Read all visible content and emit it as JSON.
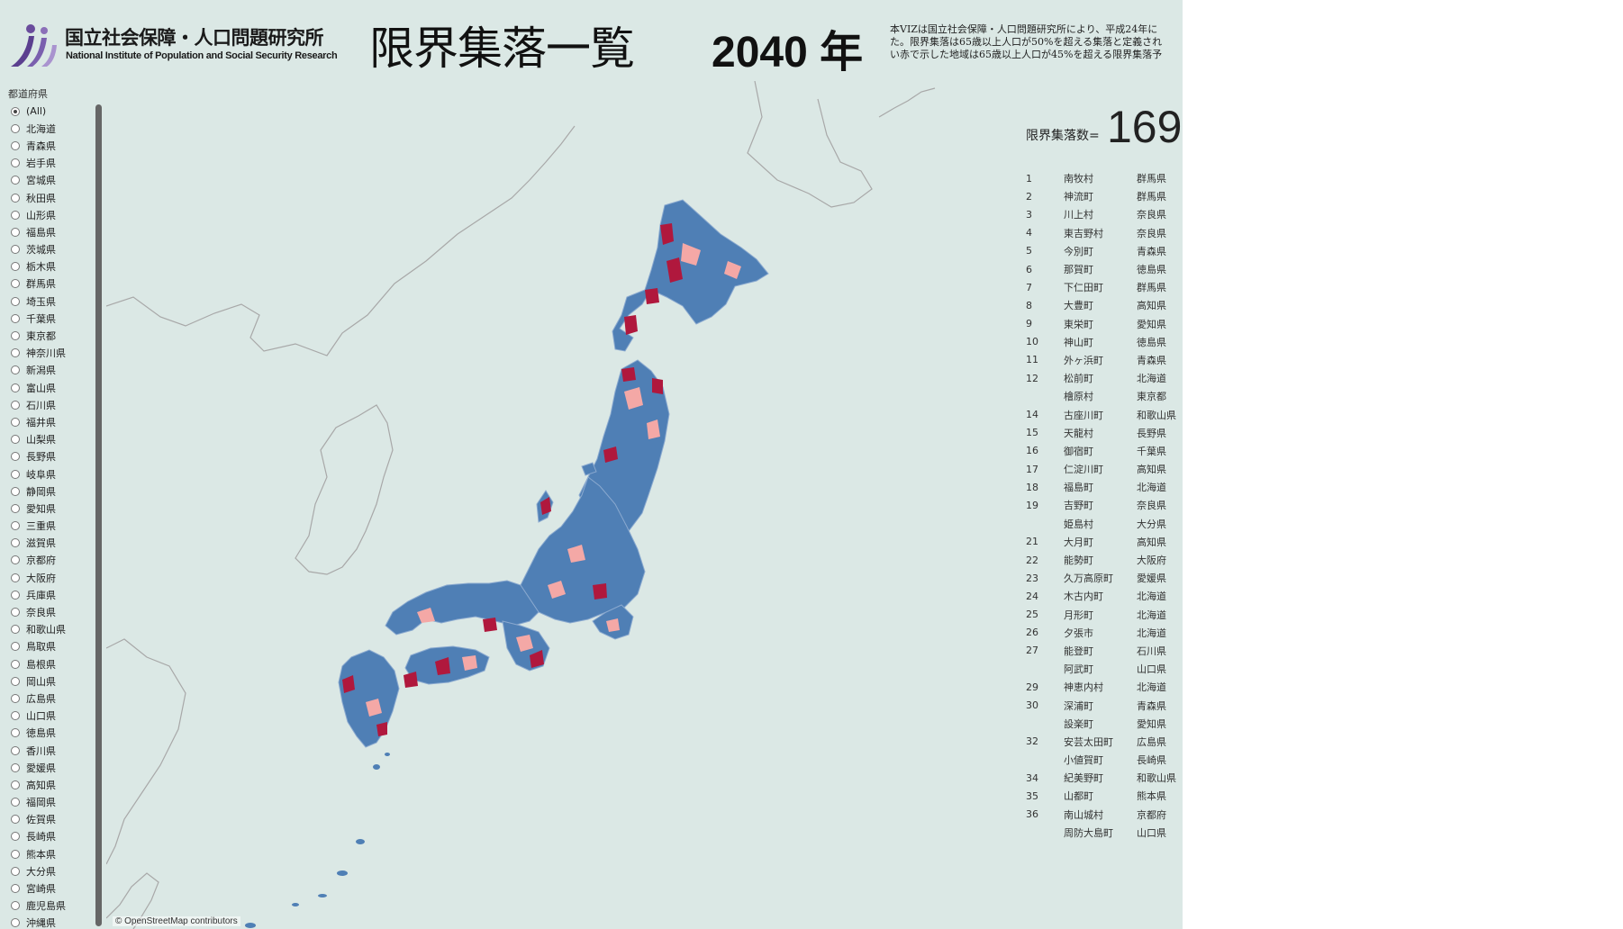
{
  "logo": {
    "name_ja": "国立社会保障・人口問題研究所",
    "name_en": "National Institute of Population and Social Security Research"
  },
  "header": {
    "title": "限界集落一覧",
    "year": "2040 年",
    "description": [
      "本VIZは国立社会保障・人口問題研究所により、平成24年に",
      "た。限界集落は65歳以上人口が50%を超える集落と定義され",
      "い赤で示した地域は65歳以上人口が45%を超える限界集落予"
    ]
  },
  "filter": {
    "title": "都道府県",
    "options": [
      "(All)",
      "北海道",
      "青森県",
      "岩手県",
      "宮城県",
      "秋田県",
      "山形県",
      "福島県",
      "茨城県",
      "栃木県",
      "群馬県",
      "埼玉県",
      "千葉県",
      "東京都",
      "神奈川県",
      "新潟県",
      "富山県",
      "石川県",
      "福井県",
      "山梨県",
      "長野県",
      "岐阜県",
      "静岡県",
      "愛知県",
      "三重県",
      "滋賀県",
      "京都府",
      "大阪府",
      "兵庫県",
      "奈良県",
      "和歌山県",
      "鳥取県",
      "島根県",
      "岡山県",
      "広島県",
      "山口県",
      "徳島県",
      "香川県",
      "愛媛県",
      "高知県",
      "福岡県",
      "佐賀県",
      "長崎県",
      "熊本県",
      "大分県",
      "宮崎県",
      "鹿児島県",
      "沖縄県"
    ],
    "selected": "(All)"
  },
  "map": {
    "attribution": "© OpenStreetMap contributors",
    "colors": {
      "water": "#dbe8e5",
      "land_outline": "#a8a8a8",
      "municipality": "#4f7fb5",
      "border": "#8aa9cf",
      "near_limit": "#f4a8a6",
      "limit": "#b0183d"
    }
  },
  "summary": {
    "label": "限界集落数=",
    "value": "169"
  },
  "ranking": [
    {
      "rank": "1",
      "municipality": "南牧村",
      "prefecture": "群馬県"
    },
    {
      "rank": "2",
      "municipality": "神流町",
      "prefecture": "群馬県"
    },
    {
      "rank": "3",
      "municipality": "川上村",
      "prefecture": "奈良県"
    },
    {
      "rank": "4",
      "municipality": "東吉野村",
      "prefecture": "奈良県"
    },
    {
      "rank": "5",
      "municipality": "今別町",
      "prefecture": "青森県"
    },
    {
      "rank": "6",
      "municipality": "那賀町",
      "prefecture": "徳島県"
    },
    {
      "rank": "7",
      "municipality": "下仁田町",
      "prefecture": "群馬県"
    },
    {
      "rank": "8",
      "municipality": "大豊町",
      "prefecture": "高知県"
    },
    {
      "rank": "9",
      "municipality": "東栄町",
      "prefecture": "愛知県"
    },
    {
      "rank": "10",
      "municipality": "神山町",
      "prefecture": "徳島県"
    },
    {
      "rank": "11",
      "municipality": "外ヶ浜町",
      "prefecture": "青森県"
    },
    {
      "rank": "12",
      "municipality": "松前町",
      "prefecture": "北海道"
    },
    {
      "rank": "",
      "municipality": "檜原村",
      "prefecture": "東京都"
    },
    {
      "rank": "14",
      "municipality": "古座川町",
      "prefecture": "和歌山県"
    },
    {
      "rank": "15",
      "municipality": "天龍村",
      "prefecture": "長野県"
    },
    {
      "rank": "16",
      "municipality": "御宿町",
      "prefecture": "千葉県"
    },
    {
      "rank": "17",
      "municipality": "仁淀川町",
      "prefecture": "高知県"
    },
    {
      "rank": "18",
      "municipality": "福島町",
      "prefecture": "北海道"
    },
    {
      "rank": "19",
      "municipality": "吉野町",
      "prefecture": "奈良県"
    },
    {
      "rank": "",
      "municipality": "姫島村",
      "prefecture": "大分県"
    },
    {
      "rank": "21",
      "municipality": "大月町",
      "prefecture": "高知県"
    },
    {
      "rank": "22",
      "municipality": "能勢町",
      "prefecture": "大阪府"
    },
    {
      "rank": "23",
      "municipality": "久万高原町",
      "prefecture": "愛媛県"
    },
    {
      "rank": "24",
      "municipality": "木古内町",
      "prefecture": "北海道"
    },
    {
      "rank": "25",
      "municipality": "月形町",
      "prefecture": "北海道"
    },
    {
      "rank": "26",
      "municipality": "夕張市",
      "prefecture": "北海道"
    },
    {
      "rank": "27",
      "municipality": "能登町",
      "prefecture": "石川県"
    },
    {
      "rank": "",
      "municipality": "阿武町",
      "prefecture": "山口県"
    },
    {
      "rank": "29",
      "municipality": "神恵内村",
      "prefecture": "北海道"
    },
    {
      "rank": "30",
      "municipality": "深浦町",
      "prefecture": "青森県"
    },
    {
      "rank": "",
      "municipality": "設楽町",
      "prefecture": "愛知県"
    },
    {
      "rank": "32",
      "municipality": "安芸太田町",
      "prefecture": "広島県"
    },
    {
      "rank": "",
      "municipality": "小値賀町",
      "prefecture": "長崎県"
    },
    {
      "rank": "34",
      "municipality": "紀美野町",
      "prefecture": "和歌山県"
    },
    {
      "rank": "35",
      "municipality": "山都町",
      "prefecture": "熊本県"
    },
    {
      "rank": "36",
      "municipality": "南山城村",
      "prefecture": "京都府"
    },
    {
      "rank": "",
      "municipality": "周防大島町",
      "prefecture": "山口県"
    }
  ]
}
